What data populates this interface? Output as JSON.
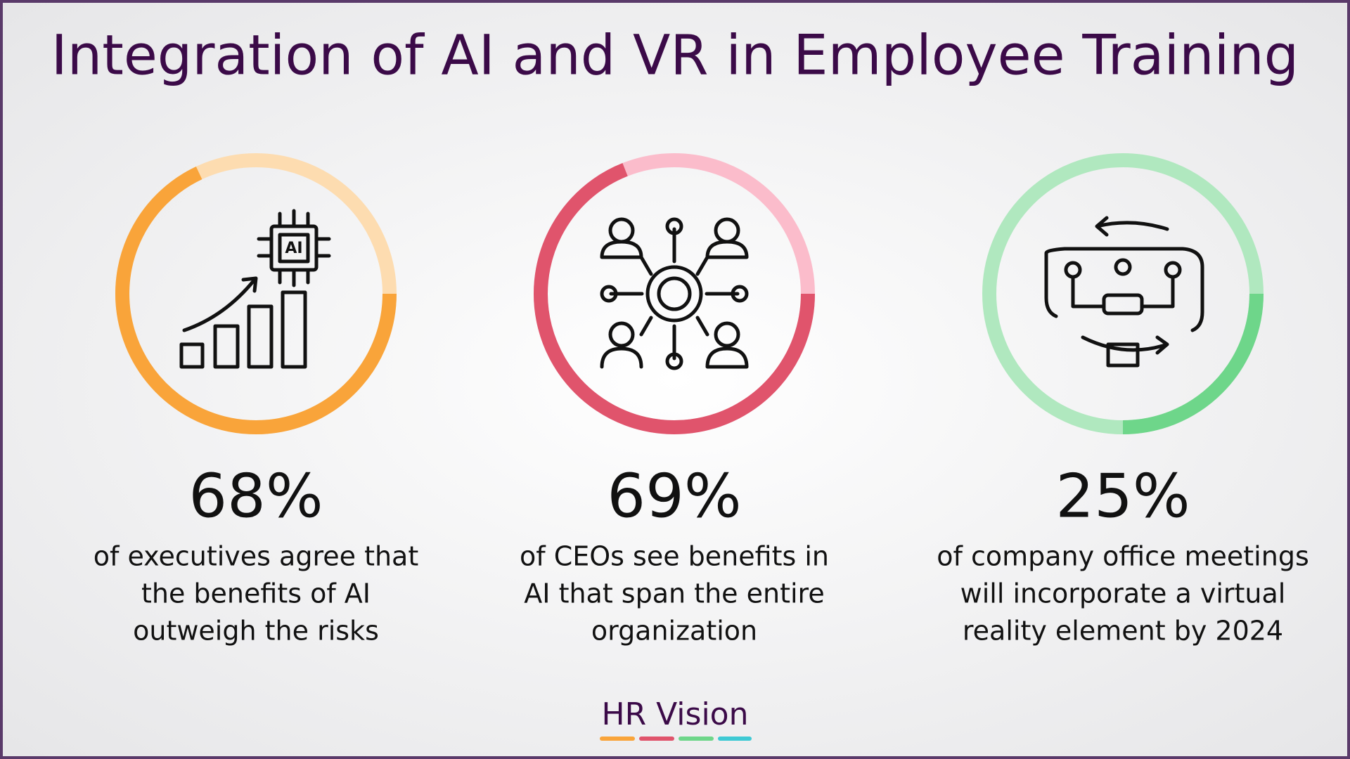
{
  "title": "Integration of AI and VR in Employee Training",
  "stats": [
    {
      "value": 68,
      "label": "68%",
      "color": "#f9a43a",
      "track_color": "#fddcb0",
      "description": [
        "of executives agree that",
        "the benefits of AI",
        "outweigh the risks"
      ]
    },
    {
      "value": 69,
      "label": "69%",
      "color": "#e0546c",
      "track_color": "#fbbccb",
      "description": [
        "of CEOs see benefits in",
        "AI that span the entire",
        "organization"
      ]
    },
    {
      "value": 25,
      "label": "25%",
      "color": "#6ed68a",
      "track_color": "#b0e8bf",
      "description": [
        "of company office meetings",
        "will incorporate a virtual",
        "reality element by 2024"
      ]
    }
  ],
  "brand": "HR Vision"
}
